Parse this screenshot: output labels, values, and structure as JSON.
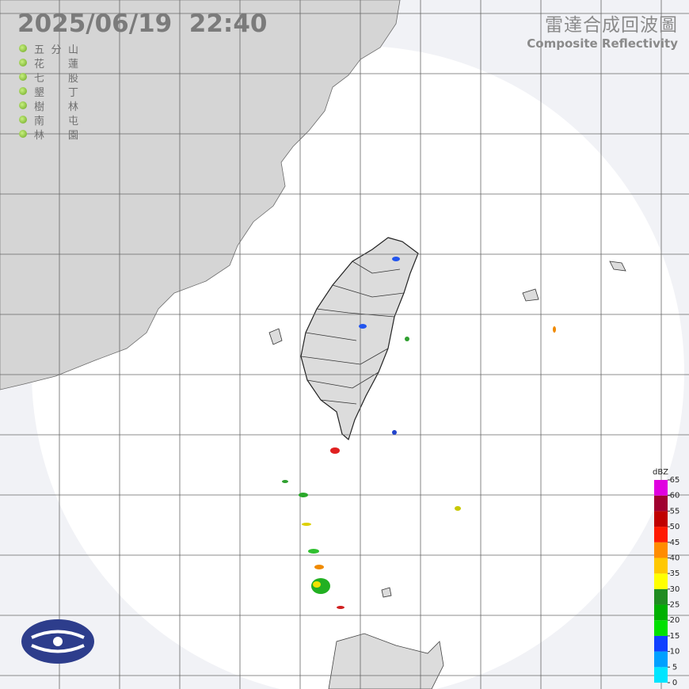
{
  "header": {
    "timestamp": "2025/06/19  22:40",
    "title": "雷達合成回波圖",
    "subtitle": "Composite Reflectivity"
  },
  "stations": [
    "五分山",
    "花蓮",
    "七股",
    "墾丁",
    "樹林",
    "南屯",
    "林園"
  ],
  "legend": {
    "unit": "dBZ",
    "ticks": [
      0,
      5,
      10,
      15,
      20,
      25,
      30,
      35,
      40,
      45,
      50,
      55,
      60,
      65
    ],
    "colors": [
      "#00e5ff",
      "#00a0ff",
      "#1040ff",
      "#00e000",
      "#00b000",
      "#208c20",
      "#ffff00",
      "#ffc800",
      "#ff8c00",
      "#ff1a00",
      "#c00000",
      "#a00030",
      "#e000e0"
    ]
  }
}
